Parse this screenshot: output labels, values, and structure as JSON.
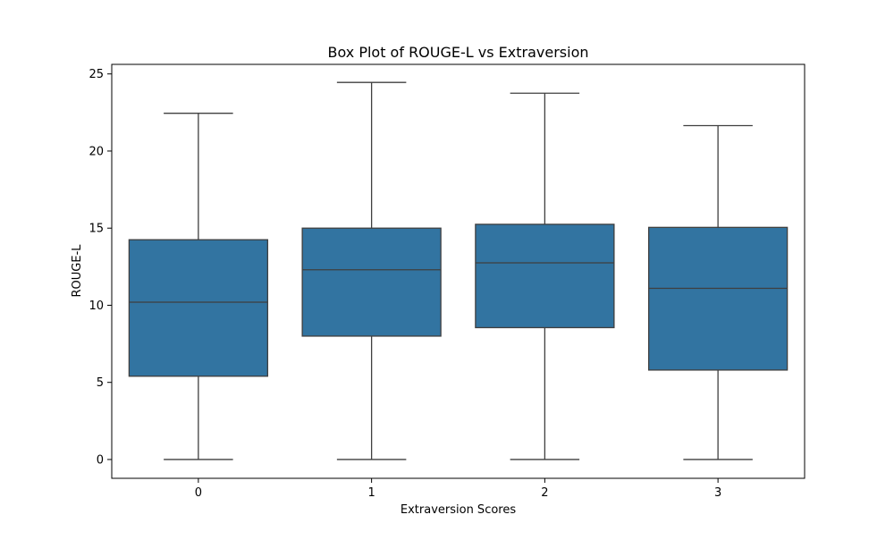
{
  "chart_data": {
    "type": "box",
    "title": "Box Plot of ROUGE-L vs Extraversion",
    "xlabel": "Extraversion Scores",
    "ylabel": "ROUGE-L",
    "categories": [
      "0",
      "1",
      "2",
      "3"
    ],
    "boxes": [
      {
        "category": "0",
        "whisker_low": 0,
        "q1": 5.4,
        "median": 10.2,
        "q3": 14.25,
        "whisker_high": 22.45
      },
      {
        "category": "1",
        "whisker_low": 0,
        "q1": 8.0,
        "median": 12.3,
        "q3": 15.0,
        "whisker_high": 24.45
      },
      {
        "category": "2",
        "whisker_low": 0,
        "q1": 8.55,
        "median": 12.75,
        "q3": 15.25,
        "whisker_high": 23.75
      },
      {
        "category": "3",
        "whisker_low": 0,
        "q1": 5.8,
        "median": 11.1,
        "q3": 15.05,
        "whisker_high": 21.65
      }
    ],
    "ylim": [
      -1.22,
      25.62
    ],
    "yticks": [
      "0",
      "5",
      "10",
      "15",
      "20",
      "25"
    ],
    "grid": false,
    "colors": {
      "box_fill": "#3274a1",
      "line": "#3f3f3f",
      "frame": "#000000",
      "background": "#ffffff"
    }
  }
}
